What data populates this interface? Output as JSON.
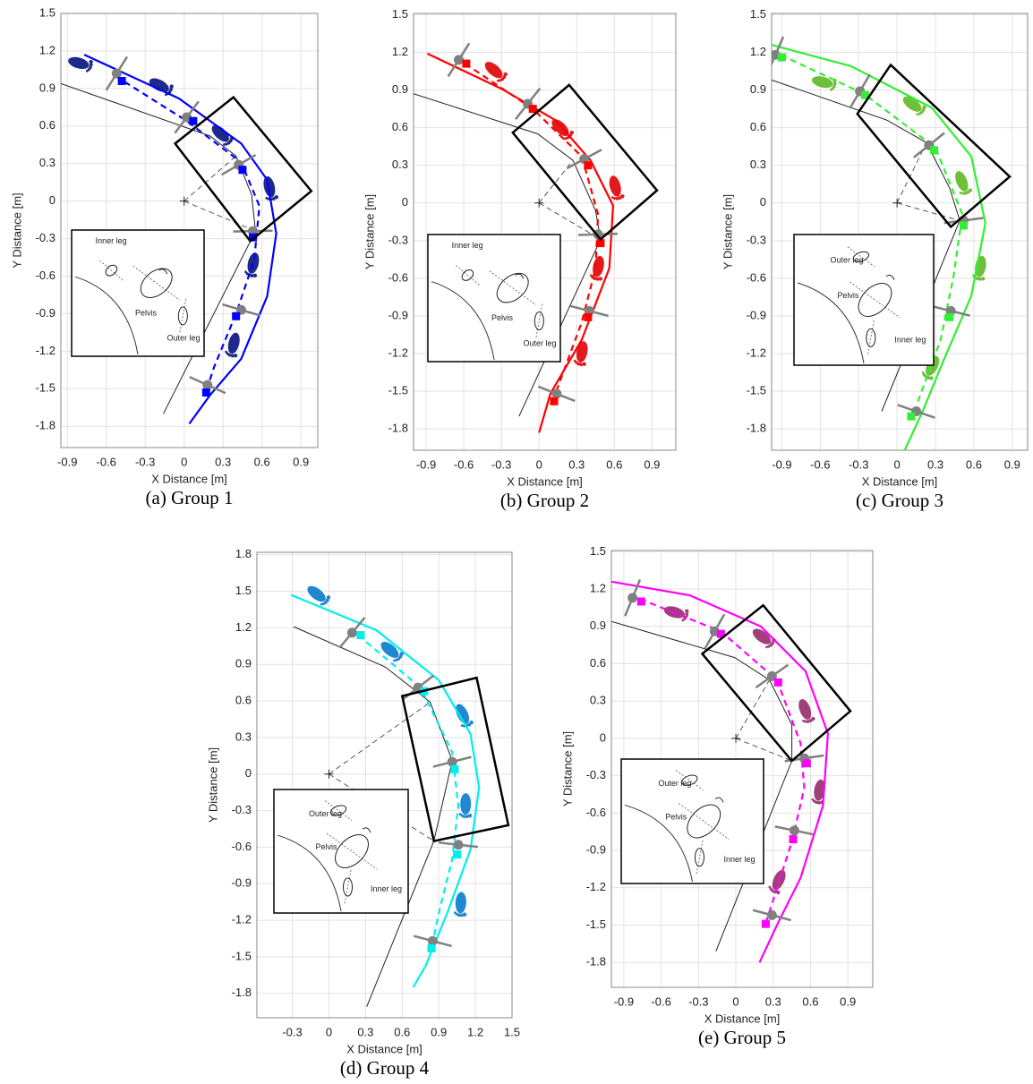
{
  "chart_data": [
    {
      "type": "line",
      "caption": "(a) Group 1",
      "xlabel": "X Distance [m]",
      "ylabel": "Y Distance [m]",
      "xlim": [
        -0.95,
        1.03
      ],
      "ylim": [
        -1.97,
        1.5
      ],
      "xticks": [
        -0.9,
        -0.6,
        -0.3,
        0,
        0.3,
        0.6,
        0.9
      ],
      "yticks": [
        -1.8,
        -1.5,
        -1.2,
        -0.9,
        -0.6,
        -0.3,
        0,
        0.3,
        0.6,
        0.9,
        1.2,
        1.5
      ],
      "grid": true,
      "color": "#0000ff",
      "foot_color": "#1e2a8a",
      "solid": {
        "x": [
          -0.77,
          -0.04,
          0.44,
          0.64,
          0.71,
          0.64,
          0.44,
          0.2,
          0.04
        ],
        "y": [
          1.17,
          0.82,
          0.46,
          0.17,
          -0.26,
          -0.76,
          -1.26,
          -1.55,
          -1.78
        ]
      },
      "dashed": {
        "x": [
          -0.53,
          0.02,
          0.44,
          0.58,
          0.54,
          0.4,
          0.23,
          0.16
        ],
        "y": [
          1.0,
          0.64,
          0.31,
          -0.04,
          -0.47,
          -0.9,
          -1.33,
          -1.55
        ]
      },
      "squares": {
        "x": [
          -0.48,
          0.07,
          0.45,
          0.53,
          0.4,
          0.17
        ],
        "y": [
          0.96,
          0.64,
          0.25,
          -0.29,
          -0.92,
          -1.53
        ]
      },
      "pelvis": {
        "x": [
          -0.52,
          0.02,
          0.42,
          0.53,
          0.44,
          0.18
        ],
        "y": [
          1.02,
          0.67,
          0.29,
          -0.24,
          -0.87,
          -1.47
        ]
      },
      "feet": {
        "x": [
          -0.8,
          -0.18,
          0.29,
          0.66,
          0.53,
          0.38
        ],
        "y": [
          1.1,
          0.92,
          0.53,
          0.1,
          -0.51,
          -1.15
        ]
      },
      "box": {
        "x": [
          -0.07,
          0.38,
          0.98,
          0.51
        ],
        "y": [
          0.46,
          0.83,
          0.08,
          -0.32
        ]
      },
      "ref_path": {
        "x": [
          -0.95,
          0.2,
          0.4,
          0.52,
          0.55
        ],
        "y": [
          0.94,
          0.52,
          0.36,
          0.05,
          -0.24
        ]
      },
      "ref_line": {
        "x": [
          -0.16,
          0.55
        ],
        "y": [
          -1.7,
          -0.24
        ]
      },
      "center": {
        "x": 0,
        "y": 0
      },
      "inset_labels": [
        "Inner leg",
        "Pelvis",
        "Outer leg"
      ]
    },
    {
      "type": "line",
      "caption": "(b) Group 2",
      "xlabel": "X Distance [m]",
      "ylabel": "Y Distance [m]",
      "xlim": [
        -1.0,
        1.09
      ],
      "ylim": [
        -1.97,
        1.51
      ],
      "xticks": [
        -0.9,
        -0.6,
        -0.3,
        0,
        0.3,
        0.6,
        0.9
      ],
      "yticks": [
        -1.8,
        -1.5,
        -1.2,
        -0.9,
        -0.6,
        -0.3,
        0,
        0.3,
        0.6,
        0.9,
        1.2,
        1.5
      ],
      "grid": true,
      "color": "#ff0000",
      "foot_color": "#e31a1c",
      "solid": {
        "x": [
          -0.89,
          -0.3,
          0.13,
          0.41,
          0.59,
          0.56,
          0.34,
          0.09,
          0
        ],
        "y": [
          1.19,
          0.91,
          0.66,
          0.34,
          -0.02,
          -0.52,
          -1.09,
          -1.52,
          -1.83
        ]
      },
      "dashed": {
        "x": [
          -0.59,
          -0.05,
          0.34,
          0.47,
          0.45,
          0.34,
          0.13
        ],
        "y": [
          1.11,
          0.75,
          0.37,
          -0.09,
          -0.52,
          -0.95,
          -1.52
        ]
      },
      "squares": {
        "x": [
          -0.58,
          -0.05,
          0.39,
          0.49,
          0.39,
          0.12
        ],
        "y": [
          1.11,
          0.75,
          0.3,
          -0.32,
          -0.91,
          -1.58
        ]
      },
      "pelvis": {
        "x": [
          -0.64,
          -0.09,
          0.36,
          0.47,
          0.4,
          0.14
        ],
        "y": [
          1.14,
          0.79,
          0.35,
          -0.25,
          -0.86,
          -1.52
        ]
      },
      "feet": {
        "x": [
          -0.35,
          0.18,
          0.61,
          0.47,
          0.34
        ],
        "y": [
          1.05,
          0.59,
          0.12,
          -0.52,
          -1.2
        ]
      },
      "box": {
        "x": [
          -0.21,
          0.24,
          0.94,
          0.49
        ],
        "y": [
          0.56,
          0.94,
          0.1,
          -0.29
        ]
      },
      "ref_path": {
        "x": [
          -1.0,
          -0.01,
          0.27,
          0.45,
          0.49
        ],
        "y": [
          0.87,
          0.55,
          0.34,
          -0.06,
          -0.29
        ]
      },
      "ref_line": {
        "x": [
          -0.16,
          0.49
        ],
        "y": [
          -1.7,
          -0.29
        ]
      },
      "center": {
        "x": 0,
        "y": 0
      },
      "inset_labels": [
        "Inner leg",
        "Pelvis",
        "Outer leg"
      ]
    },
    {
      "type": "line",
      "caption": "(c) Group 3",
      "xlabel": "X Distance [m]",
      "ylabel": "Y Distance [m]",
      "xlim": [
        -0.98,
        1.02
      ],
      "ylim": [
        -1.97,
        1.51
      ],
      "xticks": [
        -0.9,
        -0.6,
        -0.3,
        0,
        0.3,
        0.6,
        0.9
      ],
      "yticks": [
        -1.8,
        -1.5,
        -1.2,
        -0.9,
        -0.6,
        -0.3,
        0,
        0.3,
        0.6,
        0.9,
        1.2,
        1.5
      ],
      "grid": true,
      "color": "#33ee33",
      "foot_color": "#6fbf3a",
      "solid": {
        "x": [
          -0.98,
          -0.36,
          0.27,
          0.58,
          0.69,
          0.58,
          0.37,
          0.2,
          0.06
        ],
        "y": [
          1.26,
          1.09,
          0.76,
          0.37,
          -0.16,
          -0.74,
          -1.24,
          -1.66,
          -1.97
        ]
      },
      "dashed": {
        "x": [
          -0.91,
          -0.26,
          0.3,
          0.51,
          0.44,
          0.34,
          0.16
        ],
        "y": [
          1.18,
          0.87,
          0.44,
          -0.09,
          -0.59,
          -1.09,
          -1.59
        ]
      },
      "squares": {
        "x": [
          -0.9,
          -0.25,
          0.29,
          0.52,
          0.41,
          0.11
        ],
        "y": [
          1.16,
          0.86,
          0.42,
          -0.18,
          -0.91,
          -1.7
        ]
      },
      "pelvis": {
        "x": [
          -0.95,
          -0.29,
          0.25,
          0.52,
          0.42,
          0.15
        ],
        "y": [
          1.18,
          0.89,
          0.46,
          -0.14,
          -0.86,
          -1.66
        ]
      },
      "feet": {
        "x": [
          -0.57,
          0.13,
          0.51,
          0.65,
          0.27
        ],
        "y": [
          0.96,
          0.78,
          0.16,
          -0.52,
          -1.31
        ]
      },
      "box": {
        "x": [
          -0.31,
          -0.05,
          0.88,
          0.42
        ],
        "y": [
          0.71,
          1.1,
          0.21,
          -0.19
        ]
      },
      "ref_path": {
        "x": [
          -0.98,
          -0.08,
          0.23,
          0.41,
          0.49
        ],
        "y": [
          0.98,
          0.66,
          0.48,
          0.12,
          -0.14
        ]
      },
      "ref_line": {
        "x": [
          -0.12,
          0.49
        ],
        "y": [
          -1.66,
          -0.14
        ]
      },
      "center": {
        "x": 0,
        "y": 0
      },
      "inset_labels": [
        "Outer leg",
        "Pelvis",
        "Inner leg"
      ]
    },
    {
      "type": "line",
      "caption": "(d) Group 4",
      "xlabel": "X Distance [m]",
      "ylabel": "Y Distance [m]",
      "xlim": [
        -0.59,
        1.5
      ],
      "ylim": [
        -2.0,
        1.82
      ],
      "xticks": [
        -0.3,
        0,
        0.3,
        0.6,
        0.9,
        1.2,
        1.5
      ],
      "yticks": [
        -1.8,
        -1.5,
        -1.2,
        -0.9,
        -0.6,
        -0.3,
        0,
        0.3,
        0.6,
        0.9,
        1.2,
        1.5,
        1.8
      ],
      "grid": true,
      "color": "#00eeee",
      "foot_color": "#1f88d0",
      "solid": {
        "x": [
          -0.31,
          0.39,
          0.9,
          1.16,
          1.23,
          1.16,
          0.97,
          0.79,
          0.69
        ],
        "y": [
          1.47,
          1.18,
          0.77,
          0.33,
          -0.11,
          -0.62,
          -1.14,
          -1.58,
          -1.75
        ]
      },
      "dashed": {
        "x": [
          0.24,
          0.75,
          1.01,
          1.06,
          1.01,
          0.9,
          0.84
        ],
        "y": [
          1.14,
          0.71,
          0.18,
          -0.26,
          -0.7,
          -1.14,
          -1.43
        ]
      },
      "squares": {
        "x": [
          0.26,
          0.78,
          1.03,
          1.05,
          0.84
        ],
        "y": [
          1.14,
          0.68,
          0.04,
          -0.66,
          -1.43
        ]
      },
      "pelvis": {
        "x": [
          0.19,
          0.73,
          1.01,
          1.06,
          0.85
        ],
        "y": [
          1.16,
          0.71,
          0.1,
          -0.58,
          -1.37
        ]
      },
      "feet": {
        "x": [
          -0.09,
          0.51,
          1.1,
          1.12,
          1.08
        ],
        "y": [
          1.47,
          1.01,
          0.48,
          -0.26,
          -1.07
        ]
      },
      "box": {
        "x": [
          0.6,
          1.21,
          1.47,
          0.86
        ],
        "y": [
          0.64,
          0.79,
          -0.42,
          -0.55
        ]
      },
      "ref_path": {
        "x": [
          -0.29,
          0.46,
          0.83,
          1.01,
          0.86
        ],
        "y": [
          1.21,
          0.88,
          0.59,
          0.11,
          -0.55
        ]
      },
      "ref_line": {
        "x": [
          0.31,
          0.86
        ],
        "y": [
          -1.91,
          -0.55
        ]
      },
      "center": {
        "x": 0,
        "y": 0
      },
      "inset_labels": [
        "Outer leg",
        "Pelvis",
        "Inner leg"
      ]
    },
    {
      "type": "line",
      "caption": "(e) Group 5",
      "xlabel": "X Distance [m]",
      "ylabel": "Y Distance [m]",
      "xlim": [
        -1.0,
        1.1
      ],
      "ylim": [
        -2.0,
        1.51
      ],
      "xticks": [
        -0.9,
        -0.6,
        -0.3,
        0,
        0.3,
        0.6,
        0.9
      ],
      "yticks": [
        -1.8,
        -1.5,
        -1.2,
        -0.9,
        -0.6,
        -0.3,
        0,
        0.3,
        0.6,
        0.9,
        1.2,
        1.5
      ],
      "grid": true,
      "color": "#ff00ff",
      "foot_color": "#a0407a",
      "solid": {
        "x": [
          -1.0,
          -0.37,
          0.2,
          0.56,
          0.74,
          0.7,
          0.52,
          0.34,
          0.19
        ],
        "y": [
          1.26,
          1.15,
          0.9,
          0.54,
          0.04,
          -0.54,
          -1.12,
          -1.48,
          -1.8
        ]
      },
      "dashed": {
        "x": [
          -0.77,
          -0.12,
          0.33,
          0.52,
          0.55,
          0.45,
          0.29,
          0.24
        ],
        "y": [
          1.12,
          0.86,
          0.47,
          -0.04,
          -0.4,
          -0.83,
          -1.33,
          -1.48
        ]
      },
      "squares": {
        "x": [
          -0.76,
          -0.12,
          0.34,
          0.57,
          0.46,
          0.24
        ],
        "y": [
          1.1,
          0.84,
          0.45,
          -0.2,
          -0.81,
          -1.49
        ]
      },
      "pelvis": {
        "x": [
          -0.83,
          -0.17,
          0.29,
          0.55,
          0.47,
          0.29
        ],
        "y": [
          1.13,
          0.86,
          0.5,
          -0.16,
          -0.74,
          -1.42
        ]
      },
      "feet": {
        "x": [
          -0.48,
          0.22,
          0.56,
          0.67,
          0.34
        ],
        "y": [
          1.01,
          0.81,
          0.22,
          -0.43,
          -1.15
        ]
      },
      "box": {
        "x": [
          -0.27,
          0.22,
          0.92,
          0.45
        ],
        "y": [
          0.68,
          1.07,
          0.22,
          -0.18
        ]
      },
      "ref_path": {
        "x": [
          -1.0,
          -0.01,
          0.27,
          0.45,
          0.45
        ],
        "y": [
          0.94,
          0.65,
          0.47,
          0.11,
          -0.18
        ]
      },
      "ref_line": {
        "x": [
          -0.16,
          0.45
        ],
        "y": [
          -1.71,
          -0.18
        ]
      },
      "center": {
        "x": 0,
        "y": 0
      },
      "inset_labels": [
        "Outer leg",
        "Pelvis",
        "Inner leg"
      ]
    }
  ]
}
